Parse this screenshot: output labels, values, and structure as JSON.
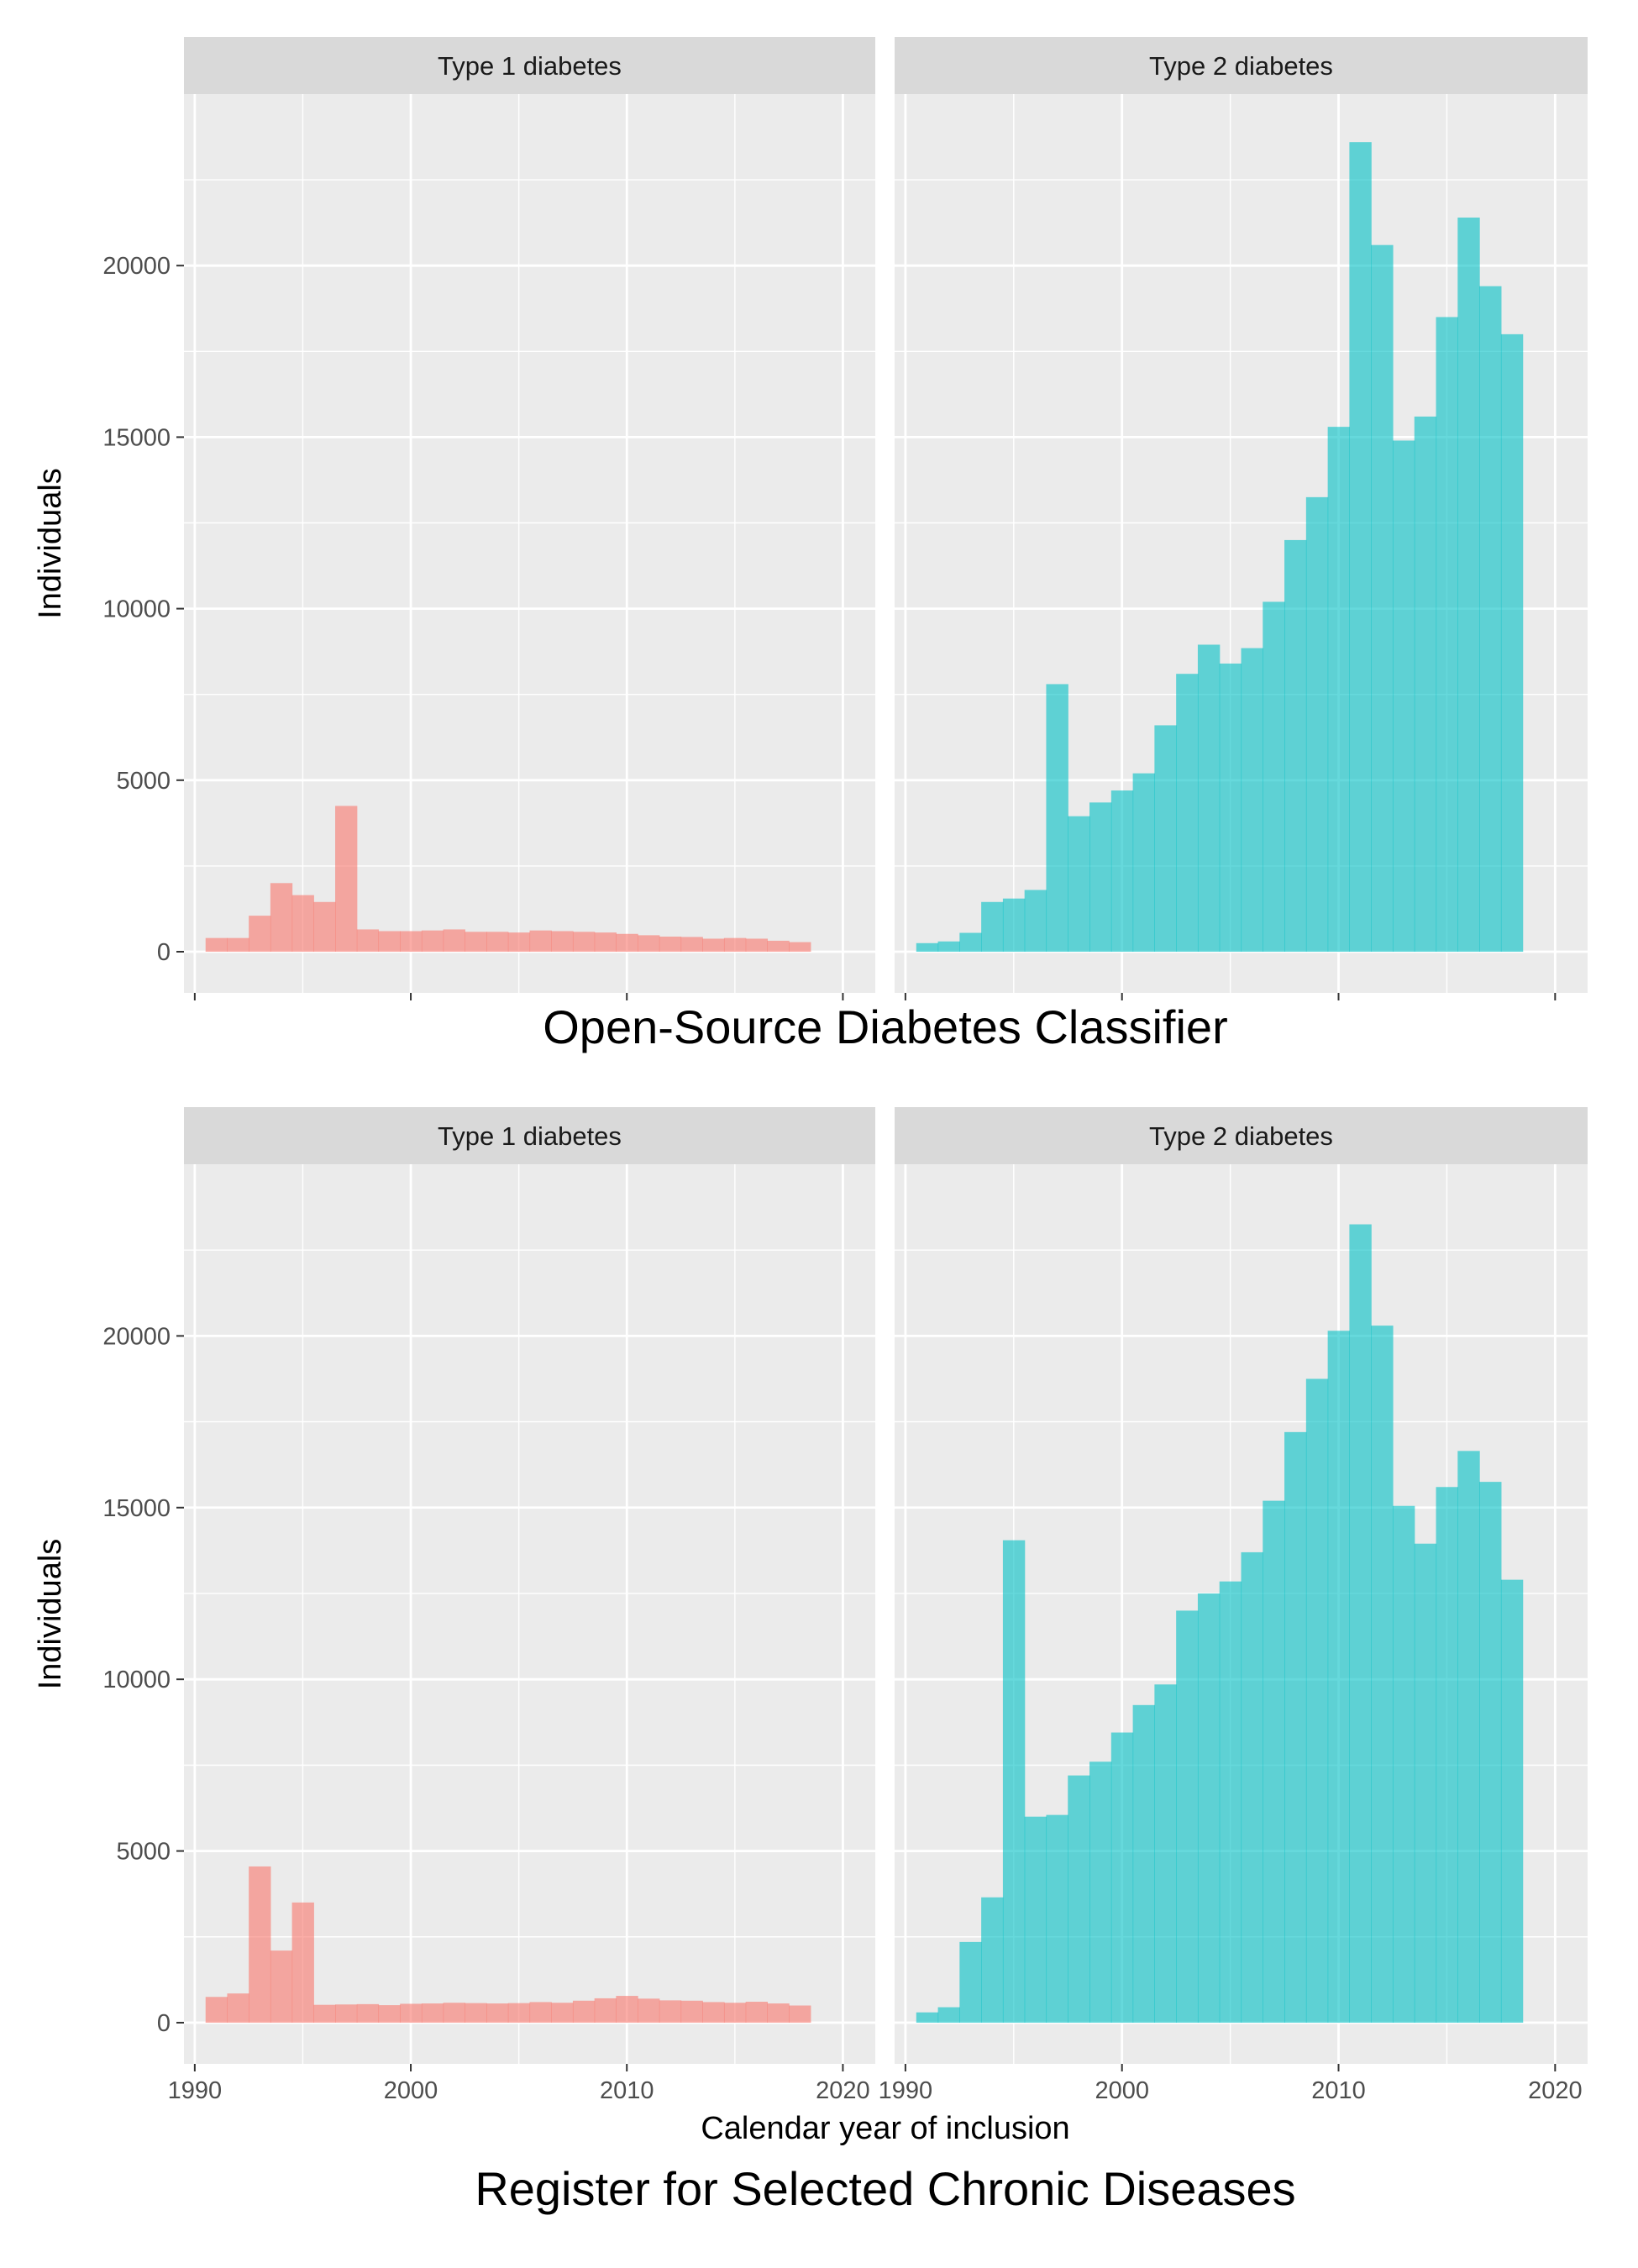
{
  "figure": {
    "x_axis_label": "Calendar year of inclusion",
    "y_axis_label": "Individuals",
    "colors": {
      "panel_bg": "#EBEBEB",
      "strip_bg": "#D9D9D9",
      "grid": "#FFFFFF",
      "type1": "#F8766D",
      "type2": "#00BFC4",
      "text": "#4D4D4D"
    }
  },
  "chart_data": [
    {
      "type": "bar",
      "title": "Open-Source Diabetes Classifier",
      "xlabel": "",
      "ylabel": "Individuals",
      "xlim": [
        1989.5,
        2021.5
      ],
      "ylim": [
        -1200,
        25000
      ],
      "x_ticks": [
        1990,
        2000,
        2010,
        2020
      ],
      "y_ticks": [
        0,
        5000,
        10000,
        15000,
        20000
      ],
      "bin_width": 1,
      "x": [
        1991,
        1992,
        1993,
        1994,
        1995,
        1996,
        1997,
        1998,
        1999,
        2000,
        2001,
        2002,
        2003,
        2004,
        2005,
        2006,
        2007,
        2008,
        2009,
        2010,
        2011,
        2012,
        2013,
        2014,
        2015,
        2016,
        2017,
        2018
      ],
      "series": [
        {
          "name": "Type 1 diabetes",
          "color": "#F8766D",
          "values": [
            400,
            400,
            1050,
            2000,
            1650,
            1450,
            4250,
            650,
            600,
            600,
            620,
            650,
            580,
            580,
            560,
            620,
            600,
            580,
            560,
            520,
            480,
            440,
            430,
            380,
            400,
            380,
            320,
            280
          ]
        },
        {
          "name": "Type 2 diabetes",
          "color": "#00BFC4",
          "values": [
            250,
            300,
            550,
            1450,
            1550,
            1800,
            7800,
            3950,
            4350,
            4700,
            5200,
            6600,
            8100,
            8950,
            8400,
            8850,
            10200,
            12000,
            13250,
            15300,
            23600,
            20600,
            14900,
            15600,
            18500,
            21400,
            19400,
            18000
          ]
        }
      ]
    },
    {
      "type": "bar",
      "title": "Register for Selected Chronic Diseases",
      "xlabel": "Calendar year of inclusion",
      "ylabel": "Individuals",
      "xlim": [
        1989.5,
        2021.5
      ],
      "ylim": [
        -1200,
        25000
      ],
      "x_ticks": [
        1990,
        2000,
        2010,
        2020
      ],
      "y_ticks": [
        0,
        5000,
        10000,
        15000,
        20000
      ],
      "bin_width": 1,
      "x": [
        1991,
        1992,
        1993,
        1994,
        1995,
        1996,
        1997,
        1998,
        1999,
        2000,
        2001,
        2002,
        2003,
        2004,
        2005,
        2006,
        2007,
        2008,
        2009,
        2010,
        2011,
        2012,
        2013,
        2014,
        2015,
        2016,
        2017,
        2018
      ],
      "series": [
        {
          "name": "Type 1 diabetes",
          "color": "#F8766D",
          "values": [
            750,
            850,
            4550,
            2100,
            3500,
            520,
            530,
            540,
            510,
            550,
            560,
            580,
            570,
            560,
            570,
            600,
            580,
            640,
            710,
            780,
            700,
            650,
            640,
            600,
            580,
            610,
            560,
            500
          ]
        },
        {
          "name": "Type 2 diabetes",
          "color": "#00BFC4",
          "values": [
            300,
            450,
            2350,
            3650,
            14050,
            6000,
            6050,
            7200,
            7600,
            8450,
            9250,
            9850,
            12000,
            12500,
            12850,
            13700,
            15200,
            17200,
            18750,
            20150,
            23250,
            20300,
            15050,
            13950,
            15600,
            16650,
            15750,
            12900
          ]
        }
      ]
    }
  ]
}
